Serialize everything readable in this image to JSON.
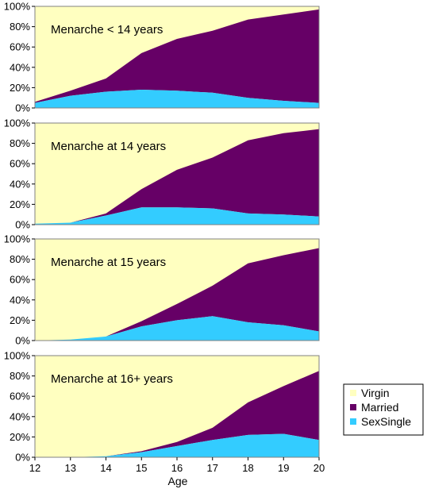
{
  "chart_data": {
    "type": "area",
    "stacked": true,
    "normalized": true,
    "xlabel": "Age",
    "x": [
      12,
      13,
      14,
      15,
      16,
      17,
      18,
      19,
      20
    ],
    "ylim": [
      0,
      100
    ],
    "y_ticks": [
      "0%",
      "20%",
      "40%",
      "60%",
      "80%",
      "100%"
    ],
    "grid": false,
    "legend": {
      "placement": "bottom-right",
      "entries": [
        "Virgin",
        "Married",
        "SexSingle"
      ]
    },
    "colors": {
      "Virgin": "#FFFFC0",
      "Married": "#660066",
      "SexSingle": "#33CCFF",
      "plot_border": "#808080"
    },
    "panels": [
      {
        "title": "Menarche < 14 years",
        "series": [
          {
            "name": "SexSingle",
            "values": [
              5,
              12,
              16,
              18,
              17,
              15,
              10,
              7,
              5
            ]
          },
          {
            "name": "Married",
            "values": [
              1,
              5,
              13,
              36,
              51,
              61,
              77,
              85,
              92
            ]
          }
        ]
      },
      {
        "title": "Menarche at 14 years",
        "series": [
          {
            "name": "SexSingle",
            "values": [
              1,
              2,
              9,
              17,
              17,
              16,
              11,
              10,
              8
            ]
          },
          {
            "name": "Married",
            "values": [
              0,
              0,
              2,
              18,
              37,
              50,
              72,
              80,
              86
            ]
          }
        ]
      },
      {
        "title": "Menarche at 15 years",
        "series": [
          {
            "name": "SexSingle",
            "values": [
              0,
              1,
              4,
              14,
              20,
              24,
              18,
              15,
              9
            ]
          },
          {
            "name": "Married",
            "values": [
              0,
              0,
              0,
              5,
              16,
              30,
              58,
              69,
              82
            ]
          }
        ]
      },
      {
        "title": "Menarche at 16+ years",
        "series": [
          {
            "name": "SexSingle",
            "values": [
              0,
              0,
              1,
              5,
              11,
              17,
              22,
              23,
              17
            ]
          },
          {
            "name": "Married",
            "values": [
              0,
              0,
              0,
              1,
              4,
              12,
              32,
              47,
              68
            ]
          }
        ]
      }
    ]
  }
}
